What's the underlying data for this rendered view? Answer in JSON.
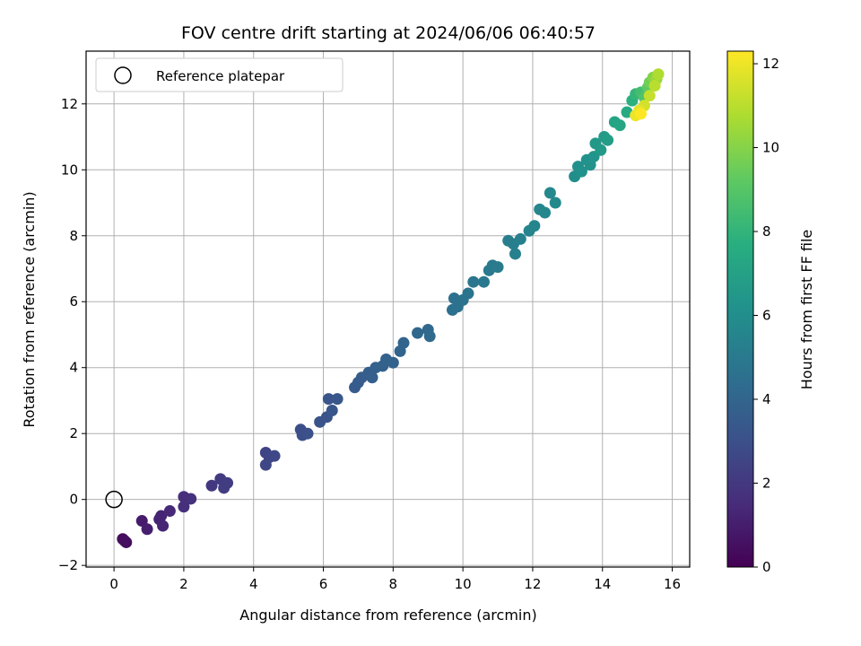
{
  "chart_data": {
    "type": "scatter",
    "title": "FOV centre drift starting at 2024/06/06 06:40:57",
    "xlabel": "Angular distance from reference (arcmin)",
    "ylabel": "Rotation from reference (arcmin)",
    "xlim": [
      -0.8,
      16.5
    ],
    "ylim": [
      -2.05,
      13.6
    ],
    "xticks": [
      0,
      2,
      4,
      6,
      8,
      10,
      12,
      14,
      16
    ],
    "yticks": [
      -2,
      0,
      2,
      4,
      6,
      8,
      10,
      12
    ],
    "grid": true,
    "legend": {
      "placement": "top-left",
      "entries": [
        "Reference platepar"
      ]
    },
    "reference_point": {
      "x": 0,
      "y": 0,
      "label": "Reference platepar"
    },
    "colorbar": {
      "label": "Hours from first FF file",
      "range": [
        0,
        12.3
      ],
      "ticks": [
        0,
        2,
        4,
        6,
        8,
        10,
        12
      ],
      "colormap": "viridis"
    },
    "points": [
      [
        0.25,
        -1.2,
        0.35
      ],
      [
        0.35,
        -1.3,
        0.4
      ],
      [
        0.3,
        -1.25,
        0.45
      ],
      [
        0.8,
        -0.65,
        0.9
      ],
      [
        0.95,
        -0.9,
        1.0
      ],
      [
        1.3,
        -0.6,
        1.2
      ],
      [
        1.35,
        -0.5,
        1.25
      ],
      [
        1.4,
        -0.8,
        1.3
      ],
      [
        1.6,
        -0.35,
        1.4
      ],
      [
        2.0,
        0.08,
        1.6
      ],
      [
        2.0,
        -0.22,
        1.65
      ],
      [
        2.2,
        0.02,
        1.7
      ],
      [
        2.8,
        0.42,
        2.0
      ],
      [
        3.05,
        0.62,
        2.1
      ],
      [
        3.15,
        0.35,
        2.15
      ],
      [
        3.25,
        0.5,
        2.2
      ],
      [
        4.35,
        1.42,
        2.5
      ],
      [
        4.45,
        1.28,
        2.55
      ],
      [
        4.35,
        1.05,
        2.6
      ],
      [
        4.6,
        1.32,
        2.65
      ],
      [
        5.35,
        2.12,
        2.9
      ],
      [
        5.4,
        1.95,
        2.95
      ],
      [
        5.55,
        2.0,
        3.0
      ],
      [
        5.9,
        2.35,
        3.1
      ],
      [
        6.1,
        2.5,
        3.15
      ],
      [
        6.15,
        3.05,
        3.2
      ],
      [
        6.25,
        2.7,
        3.25
      ],
      [
        6.4,
        3.05,
        3.3
      ],
      [
        6.9,
        3.4,
        3.5
      ],
      [
        7.0,
        3.55,
        3.55
      ],
      [
        7.1,
        3.7,
        3.6
      ],
      [
        7.3,
        3.85,
        3.65
      ],
      [
        7.4,
        3.7,
        3.7
      ],
      [
        7.5,
        4.0,
        3.75
      ],
      [
        7.7,
        4.05,
        3.8
      ],
      [
        7.8,
        4.25,
        3.85
      ],
      [
        8.0,
        4.15,
        3.9
      ],
      [
        8.2,
        4.5,
        3.95
      ],
      [
        8.3,
        4.75,
        4.0
      ],
      [
        8.7,
        5.05,
        4.1
      ],
      [
        9.0,
        5.15,
        4.2
      ],
      [
        9.05,
        4.95,
        4.25
      ],
      [
        9.7,
        5.75,
        4.5
      ],
      [
        9.75,
        6.1,
        4.55
      ],
      [
        9.85,
        5.85,
        4.6
      ],
      [
        10.0,
        6.05,
        4.65
      ],
      [
        10.15,
        6.25,
        4.7
      ],
      [
        10.3,
        6.6,
        4.75
      ],
      [
        10.6,
        6.6,
        4.9
      ],
      [
        10.75,
        6.95,
        4.95
      ],
      [
        10.85,
        7.1,
        5.0
      ],
      [
        11.0,
        7.05,
        5.05
      ],
      [
        11.3,
        7.85,
        5.2
      ],
      [
        11.45,
        7.75,
        5.25
      ],
      [
        11.5,
        7.45,
        5.3
      ],
      [
        11.65,
        7.9,
        5.35
      ],
      [
        11.9,
        8.15,
        5.5
      ],
      [
        12.05,
        8.3,
        5.55
      ],
      [
        12.2,
        8.8,
        5.6
      ],
      [
        12.35,
        8.7,
        5.65
      ],
      [
        12.5,
        9.3,
        5.7
      ],
      [
        12.65,
        9.0,
        5.75
      ],
      [
        13.2,
        9.8,
        6.0
      ],
      [
        13.3,
        10.1,
        6.1
      ],
      [
        13.4,
        9.95,
        6.15
      ],
      [
        13.55,
        10.3,
        6.2
      ],
      [
        13.65,
        10.15,
        6.25
      ],
      [
        13.75,
        10.4,
        6.3
      ],
      [
        13.8,
        10.8,
        6.5
      ],
      [
        13.95,
        10.6,
        6.6
      ],
      [
        14.05,
        11.0,
        6.7
      ],
      [
        14.15,
        10.9,
        6.8
      ],
      [
        14.35,
        11.45,
        7.1
      ],
      [
        14.5,
        11.35,
        7.2
      ],
      [
        14.7,
        11.75,
        7.5
      ],
      [
        14.85,
        12.1,
        7.8
      ],
      [
        14.95,
        12.3,
        8.1
      ],
      [
        15.1,
        12.35,
        8.5
      ],
      [
        15.2,
        12.2,
        8.8
      ],
      [
        15.3,
        12.5,
        9.2
      ],
      [
        15.35,
        12.65,
        9.6
      ],
      [
        15.45,
        12.8,
        10.0
      ],
      [
        15.55,
        12.75,
        10.4
      ],
      [
        15.6,
        12.9,
        10.8
      ],
      [
        15.5,
        12.55,
        11.0
      ],
      [
        15.35,
        12.25,
        11.2
      ],
      [
        15.2,
        11.95,
        11.5
      ],
      [
        15.05,
        11.8,
        11.8
      ],
      [
        14.95,
        11.65,
        12.0
      ],
      [
        15.1,
        11.7,
        12.3
      ]
    ]
  }
}
